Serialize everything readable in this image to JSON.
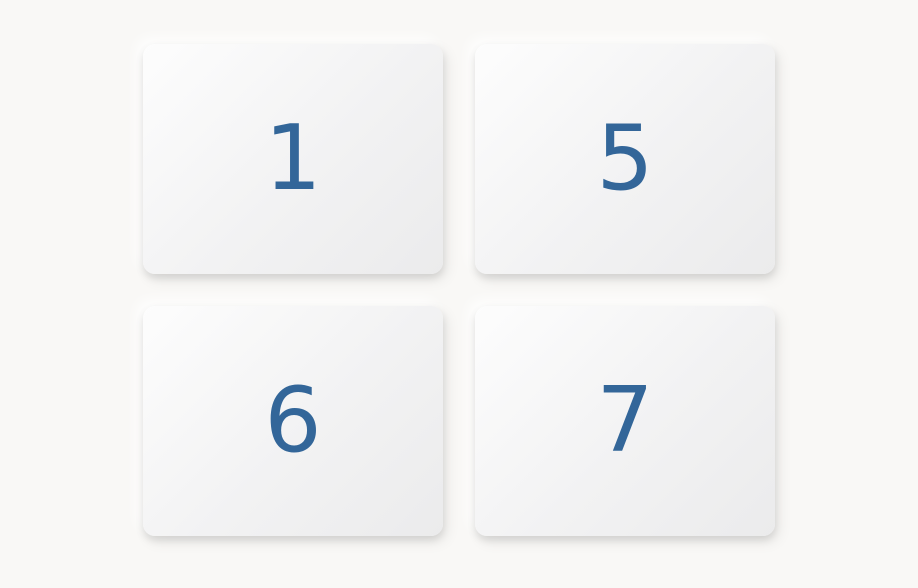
{
  "colors": {
    "background": "#f9f8f6",
    "tile": "#f2f2f3",
    "number": "#336699"
  },
  "tiles": [
    {
      "label": "1"
    },
    {
      "label": "5"
    },
    {
      "label": "6"
    },
    {
      "label": "7"
    }
  ]
}
